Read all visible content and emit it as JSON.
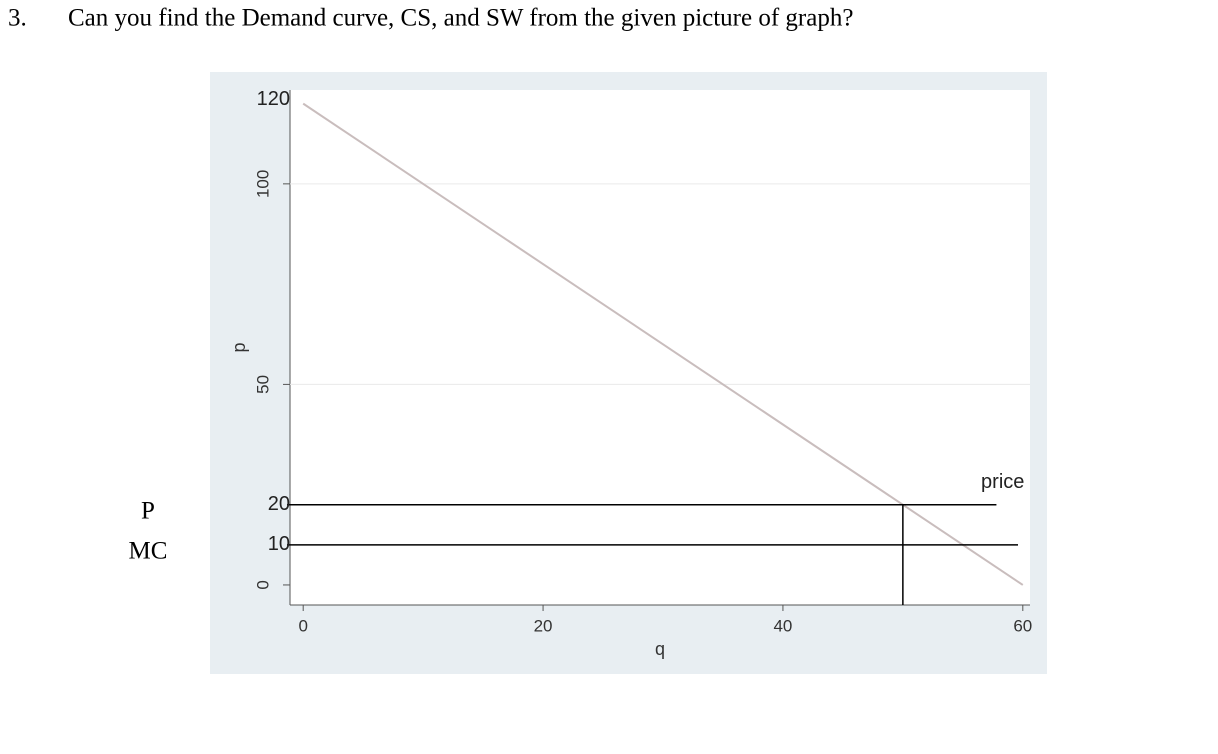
{
  "question": {
    "number": "3.",
    "text": "Can you find the Demand curve, CS, and SW from the given picture of graph?"
  },
  "side_labels": [
    "P",
    "MC"
  ],
  "chart_data": {
    "type": "line",
    "x_label": "q",
    "y_label": "p",
    "x": [
      0,
      60
    ],
    "series": [
      {
        "color": "#c9bdbd",
        "values": [
          120,
          0
        ]
      }
    ],
    "xlim": [
      -1.1,
      60.6
    ],
    "ylim": [
      -5,
      123.4
    ],
    "xticks": [
      0,
      20,
      40,
      60
    ],
    "yticks": [
      0,
      50,
      100
    ],
    "grid": true,
    "hlines": [
      {
        "y": 20,
        "x_end": 57.8,
        "text": "price"
      },
      {
        "y": 10,
        "x_end": 59.6
      }
    ],
    "vlines": [
      {
        "x": 50,
        "y_end": 20
      }
    ]
  }
}
